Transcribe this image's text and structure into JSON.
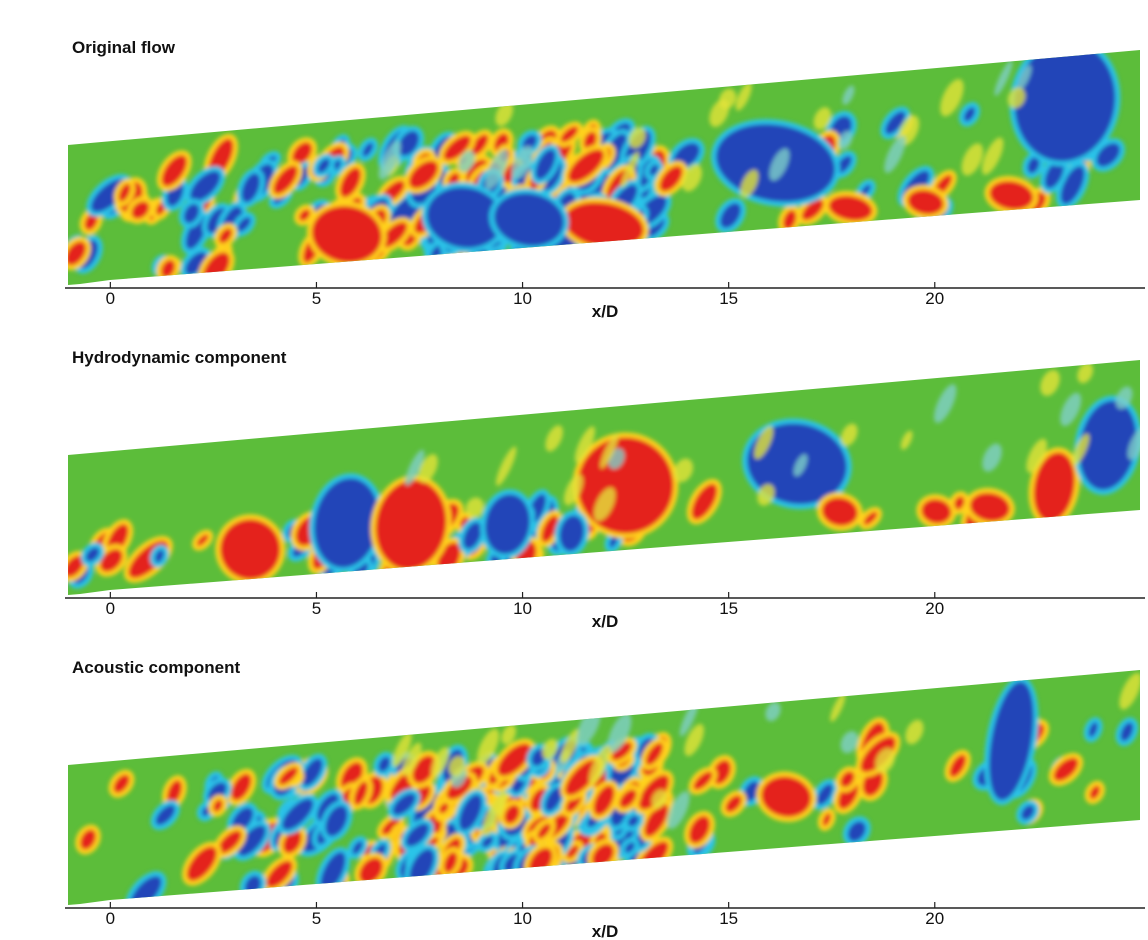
{
  "chart_data": [
    {
      "type": "contour",
      "title": "Original flow",
      "xlabel": "x/D",
      "xlim": [
        -1.1,
        25.1
      ],
      "xticks": [
        0,
        5,
        10,
        15,
        20
      ]
    },
    {
      "type": "contour",
      "title": "Hydrodynamic component",
      "xlabel": "x/D",
      "xlim": [
        -1.1,
        25.1
      ],
      "xticks": [
        0,
        5,
        10,
        15,
        20
      ]
    },
    {
      "type": "contour",
      "title": "Acoustic component",
      "xlabel": "x/D",
      "xlim": [
        -1.1,
        25.1
      ],
      "xticks": [
        0,
        5,
        10,
        15,
        20
      ]
    }
  ]
}
